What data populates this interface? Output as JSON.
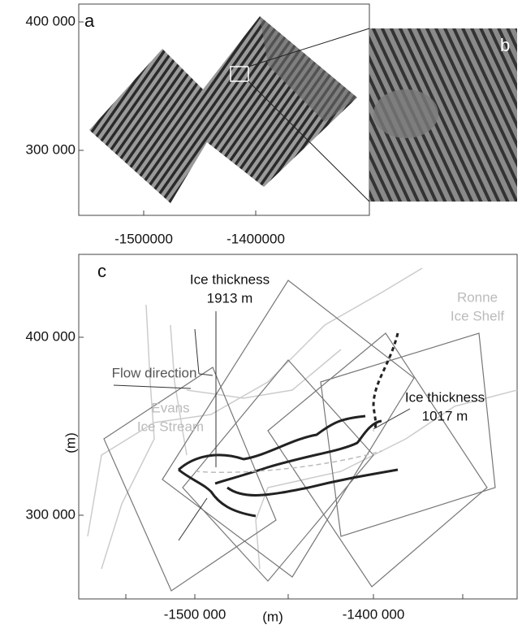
{
  "panels": {
    "a": {
      "label": "a",
      "yticks": [
        "400 000",
        "300 000"
      ],
      "xticks": [
        "-1500000",
        "-1400000"
      ]
    },
    "b": {
      "label": "b"
    },
    "c": {
      "label": "c",
      "yticks": [
        "400 000",
        "300 000"
      ],
      "xticks": [
        "-1500 000",
        "-1400 000"
      ],
      "y_label": "(m)",
      "x_label": "(m)",
      "annotations": {
        "ice_thickness_1": [
          "Ice thickness",
          "1913 m"
        ],
        "ice_thickness_2": [
          "Ice thickness",
          "1017 m"
        ],
        "ronne": [
          "Ronne",
          "Ice Shelf"
        ],
        "evans": [
          "Evans",
          "Ice Stream"
        ],
        "flow": "Flow direction"
      }
    }
  }
}
